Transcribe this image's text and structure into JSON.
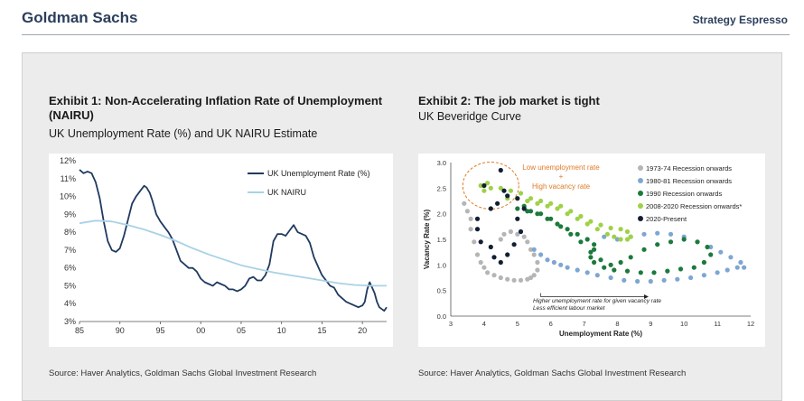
{
  "header": {
    "brand": "Goldman Sachs",
    "publication": "Strategy Espresso"
  },
  "exhibit1": {
    "title_line1": "Exhibit 1: Non-Accelerating Inflation Rate of Unemployment",
    "title_line2": "(NAIRU)",
    "subtitle": "UK Unemployment Rate (%) and UK NAIRU Estimate",
    "source": "Source: Haver Analytics, Goldman Sachs Global Investment Research"
  },
  "exhibit2": {
    "title": "Exhibit 2: The job market is tight",
    "subtitle": "UK Beveridge Curve",
    "source": "Source: Haver Analytics, Goldman Sachs Global Investment Research"
  },
  "colors": {
    "unemployment": "#1f3a5f",
    "nairu": "#a9d2e6",
    "s1973": "#b5b5b5",
    "s1980": "#7ea6d2",
    "s1990": "#1b7a3c",
    "s2008": "#9fd147",
    "s2020": "#111f33",
    "annotation_orange": "#e07a26"
  },
  "chart_data": [
    {
      "type": "line",
      "x_ticks": [
        "85",
        "90",
        "95",
        "00",
        "05",
        "10",
        "15",
        "20"
      ],
      "x_range": [
        1985,
        2023
      ],
      "y_ticks": [
        "12%",
        "11%",
        "10%",
        "9%",
        "8%",
        "7%",
        "6%",
        "5%",
        "4%",
        "3%"
      ],
      "ylim": [
        3,
        12
      ],
      "legend_position": "top-right",
      "series": [
        {
          "name": "UK Unemployment Rate (%)",
          "x": [
            1985,
            1985.5,
            1986,
            1986.5,
            1987,
            1987.5,
            1988,
            1988.5,
            1989,
            1989.5,
            1990,
            1990.5,
            1991,
            1991.5,
            1992,
            1992.5,
            1993,
            1993.3,
            1993.7,
            1994,
            1994.5,
            1995,
            1995.5,
            1996,
            1996.5,
            1997,
            1997.5,
            1998,
            1998.5,
            1999,
            1999.5,
            2000,
            2000.5,
            2001,
            2001.5,
            2002,
            2002.5,
            2003,
            2003.5,
            2004,
            2004.5,
            2005,
            2005.5,
            2006,
            2006.5,
            2007,
            2007.5,
            2008,
            2008.5,
            2009,
            2009.5,
            2010,
            2010.5,
            2011,
            2011.5,
            2012,
            2012.5,
            2013,
            2013.5,
            2014,
            2014.5,
            2015,
            2015.5,
            2016,
            2016.5,
            2017,
            2017.5,
            2018,
            2018.5,
            2019,
            2019.5,
            2020,
            2020.3,
            2020.6,
            2020.9,
            2021.2,
            2021.5,
            2021.8,
            2022.1,
            2022.4,
            2022.7,
            2023
          ],
          "values": [
            11.5,
            11.3,
            11.4,
            11.3,
            10.8,
            9.9,
            8.6,
            7.5,
            7.0,
            6.9,
            7.1,
            7.8,
            8.7,
            9.6,
            10.0,
            10.3,
            10.6,
            10.5,
            10.2,
            9.8,
            9.0,
            8.6,
            8.3,
            8.0,
            7.6,
            7.0,
            6.4,
            6.2,
            6.0,
            6.0,
            5.8,
            5.4,
            5.2,
            5.1,
            5.0,
            5.2,
            5.1,
            5.0,
            4.8,
            4.8,
            4.7,
            4.8,
            5.0,
            5.4,
            5.5,
            5.3,
            5.3,
            5.6,
            6.2,
            7.5,
            7.9,
            7.9,
            7.8,
            8.1,
            8.4,
            8.0,
            7.9,
            7.8,
            7.4,
            6.6,
            6.1,
            5.6,
            5.3,
            5.0,
            4.9,
            4.5,
            4.3,
            4.1,
            4.0,
            3.9,
            3.8,
            3.9,
            4.1,
            4.8,
            5.2,
            4.9,
            4.6,
            4.1,
            3.8,
            3.7,
            3.6,
            3.8
          ]
        },
        {
          "name": "UK NAIRU",
          "x": [
            1985,
            1987,
            1989,
            1991,
            1993,
            1995,
            1997,
            1999,
            2001,
            2003,
            2005,
            2007,
            2009,
            2011,
            2013,
            2015,
            2017,
            2019,
            2021,
            2023
          ],
          "values": [
            8.5,
            8.65,
            8.6,
            8.4,
            8.15,
            7.85,
            7.5,
            7.1,
            6.75,
            6.45,
            6.15,
            5.95,
            5.75,
            5.6,
            5.45,
            5.3,
            5.15,
            5.05,
            5.0,
            5.0
          ]
        }
      ]
    },
    {
      "type": "scatter",
      "xlabel": "Unemployment Rate (%)",
      "ylabel": "Vacancy Rate (%)",
      "x_ticks": [
        "3",
        "4",
        "5",
        "6",
        "7",
        "8",
        "9",
        "10",
        "11",
        "12"
      ],
      "y_ticks": [
        "0.0",
        "0.5",
        "1.0",
        "1.5",
        "2.0",
        "2.5",
        "3.0"
      ],
      "xlim": [
        3,
        12
      ],
      "ylim": [
        0,
        3
      ],
      "legend_position": "top-right",
      "annotations": {
        "tight_label_1": "Low unemployment rate",
        "tight_label_2": "+",
        "tight_label_3": "High vacancy rate",
        "arrow_label_1": "Higher unemployment rate for given vacancy rate",
        "arrow_label_2": "Less efficient labour market"
      },
      "series": [
        {
          "name": "1973-74 Recession onwards",
          "color_key": "s1973",
          "points": [
            [
              3.4,
              2.2
            ],
            [
              3.5,
              2.05
            ],
            [
              3.6,
              1.9
            ],
            [
              3.6,
              1.7
            ],
            [
              3.7,
              1.45
            ],
            [
              3.8,
              1.2
            ],
            [
              3.9,
              1.05
            ],
            [
              4.0,
              0.95
            ],
            [
              4.1,
              0.85
            ],
            [
              4.3,
              0.8
            ],
            [
              4.5,
              0.75
            ],
            [
              4.7,
              0.72
            ],
            [
              4.9,
              0.7
            ],
            [
              5.1,
              0.7
            ],
            [
              5.3,
              0.72
            ],
            [
              5.4,
              0.75
            ],
            [
              5.5,
              0.8
            ],
            [
              5.6,
              0.9
            ],
            [
              5.6,
              1.05
            ],
            [
              5.5,
              1.2
            ],
            [
              5.4,
              1.3
            ],
            [
              5.3,
              1.45
            ],
            [
              5.2,
              1.55
            ],
            [
              5.0,
              1.6
            ],
            [
              4.8,
              1.65
            ],
            [
              4.6,
              1.6
            ],
            [
              4.5,
              1.5
            ]
          ]
        },
        {
          "name": "1980-81 Recession onwards",
          "color_key": "s1980",
          "points": [
            [
              5.5,
              1.3
            ],
            [
              5.7,
              1.2
            ],
            [
              5.9,
              1.1
            ],
            [
              6.1,
              1.05
            ],
            [
              6.3,
              1.0
            ],
            [
              6.5,
              0.95
            ],
            [
              6.8,
              0.9
            ],
            [
              7.1,
              0.85
            ],
            [
              7.4,
              0.8
            ],
            [
              7.8,
              0.75
            ],
            [
              8.2,
              0.7
            ],
            [
              8.6,
              0.68
            ],
            [
              9.0,
              0.68
            ],
            [
              9.4,
              0.7
            ],
            [
              9.8,
              0.72
            ],
            [
              10.2,
              0.75
            ],
            [
              10.6,
              0.8
            ],
            [
              11.0,
              0.85
            ],
            [
              11.3,
              0.9
            ],
            [
              11.6,
              0.95
            ],
            [
              11.8,
              0.95
            ],
            [
              11.7,
              1.05
            ],
            [
              11.4,
              1.15
            ],
            [
              11.1,
              1.25
            ],
            [
              10.8,
              1.35
            ],
            [
              10.4,
              1.45
            ],
            [
              10.0,
              1.55
            ],
            [
              9.6,
              1.6
            ],
            [
              9.2,
              1.62
            ],
            [
              8.8,
              1.6
            ],
            [
              8.4,
              1.55
            ],
            [
              8.0,
              1.5
            ],
            [
              7.6,
              1.55
            ]
          ]
        },
        {
          "name": "1990 Recession onwards",
          "color_key": "s1990",
          "points": [
            [
              5.0,
              2.1
            ],
            [
              5.3,
              2.05
            ],
            [
              5.6,
              2.0
            ],
            [
              5.9,
              1.9
            ],
            [
              6.2,
              1.8
            ],
            [
              6.5,
              1.7
            ],
            [
              6.8,
              1.6
            ],
            [
              7.1,
              1.5
            ],
            [
              7.3,
              1.4
            ],
            [
              7.3,
              1.3
            ],
            [
              7.2,
              1.15
            ],
            [
              7.3,
              1.05
            ],
            [
              7.6,
              0.95
            ],
            [
              7.9,
              0.9
            ],
            [
              8.3,
              0.88
            ],
            [
              8.7,
              0.85
            ],
            [
              9.1,
              0.85
            ],
            [
              9.5,
              0.88
            ],
            [
              9.9,
              0.92
            ],
            [
              10.3,
              0.95
            ],
            [
              10.6,
              1.05
            ],
            [
              10.8,
              1.2
            ],
            [
              10.7,
              1.35
            ],
            [
              10.4,
              1.45
            ],
            [
              10.0,
              1.5
            ],
            [
              9.6,
              1.45
            ],
            [
              9.2,
              1.4
            ],
            [
              8.8,
              1.3
            ],
            [
              8.4,
              1.15
            ],
            [
              8.1,
              1.05
            ],
            [
              7.8,
              1.0
            ],
            [
              7.5,
              1.1
            ],
            [
              7.2,
              1.25
            ],
            [
              6.9,
              1.45
            ],
            [
              6.6,
              1.6
            ],
            [
              6.3,
              1.75
            ],
            [
              6.0,
              1.9
            ],
            [
              5.7,
              2.0
            ],
            [
              5.4,
              2.05
            ],
            [
              5.2,
              2.15
            ]
          ]
        },
        {
          "name": "2008-2020 Recession onwards*",
          "color_key": "s2008",
          "points": [
            [
              4.7,
              2.3
            ],
            [
              5.0,
              2.3
            ],
            [
              5.3,
              2.25
            ],
            [
              5.6,
              2.2
            ],
            [
              5.9,
              2.15
            ],
            [
              6.2,
              2.1
            ],
            [
              6.5,
              2.0
            ],
            [
              6.8,
              1.9
            ],
            [
              7.1,
              1.8
            ],
            [
              7.4,
              1.7
            ],
            [
              7.7,
              1.6
            ],
            [
              7.9,
              1.55
            ],
            [
              8.1,
              1.5
            ],
            [
              8.3,
              1.5
            ],
            [
              8.4,
              1.55
            ],
            [
              8.3,
              1.65
            ],
            [
              8.1,
              1.7
            ],
            [
              7.8,
              1.72
            ],
            [
              7.5,
              1.78
            ],
            [
              7.2,
              1.85
            ],
            [
              6.9,
              1.95
            ],
            [
              6.6,
              2.05
            ],
            [
              6.3,
              2.15
            ],
            [
              6.0,
              2.2
            ],
            [
              5.7,
              2.25
            ],
            [
              5.4,
              2.3
            ],
            [
              5.1,
              2.4
            ],
            [
              4.8,
              2.45
            ],
            [
              4.5,
              2.5
            ],
            [
              4.2,
              2.5
            ],
            [
              4.0,
              2.45
            ],
            [
              3.9,
              2.55
            ],
            [
              4.1,
              2.6
            ]
          ]
        },
        {
          "name": "2020-Present",
          "color_key": "s2020",
          "points": [
            [
              4.5,
              2.85
            ],
            [
              4.0,
              2.55
            ],
            [
              4.6,
              2.45
            ],
            [
              5.0,
              2.3
            ],
            [
              5.2,
              2.1
            ],
            [
              5.0,
              1.9
            ],
            [
              5.1,
              1.65
            ],
            [
              4.9,
              1.4
            ],
            [
              4.7,
              1.2
            ],
            [
              4.5,
              1.05
            ],
            [
              4.3,
              1.15
            ],
            [
              4.2,
              1.35
            ],
            [
              3.9,
              1.45
            ],
            [
              3.8,
              1.7
            ],
            [
              3.8,
              1.9
            ],
            [
              4.2,
              2.1
            ],
            [
              4.4,
              2.2
            ],
            [
              4.7,
              2.35
            ]
          ]
        }
      ]
    }
  ]
}
